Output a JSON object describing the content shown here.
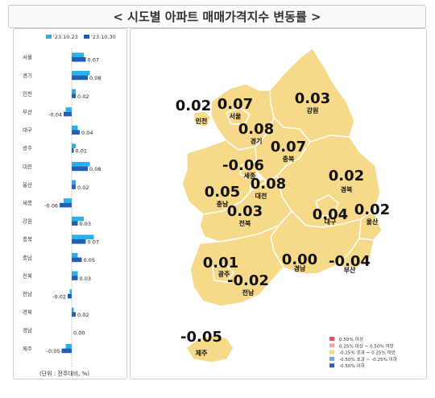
{
  "title": "< 시도별 아파트 매매가격지수 변동률 >",
  "legend": {
    "prev": "'23.10.23",
    "curr": "'23.10.30"
  },
  "colors": {
    "prev": "#2ab1ea",
    "curr": "#1f5fb6",
    "map_fill": "#f7d98a",
    "map_stroke": "#ffffff"
  },
  "chart_data": {
    "type": "bar",
    "orientation": "horizontal",
    "categories": [
      "서울",
      "경기",
      "인천",
      "부산",
      "대구",
      "광주",
      "대전",
      "울산",
      "세종",
      "강원",
      "충북",
      "충남",
      "전북",
      "전남",
      "경북",
      "경남",
      "제주"
    ],
    "series": [
      {
        "name": "'23.10.23",
        "values": [
          0.06,
          0.09,
          0.02,
          -0.03,
          0.03,
          0.02,
          0.09,
          0.02,
          -0.04,
          0.06,
          0.11,
          0.03,
          0.03,
          -0.01,
          0.01,
          0.0,
          -0.03
        ]
      },
      {
        "name": "'23.10.30",
        "values": [
          0.07,
          0.08,
          0.02,
          -0.04,
          0.04,
          0.01,
          0.08,
          0.02,
          -0.06,
          0.03,
          0.07,
          0.05,
          0.03,
          -0.02,
          0.02,
          0.0,
          -0.05
        ]
      }
    ],
    "data_labels": [
      "0.07",
      "0.08",
      "0.02",
      "-0.04",
      "0.04",
      "0.01",
      "0.08",
      "0.02",
      "-0.06",
      "0.03",
      "0.07",
      "0.05",
      "0.03",
      "-0.02",
      "0.02",
      "0.00",
      "-0.05"
    ]
  },
  "unit_note": "(단위 : 전주대비, %)",
  "map": {
    "regions": [
      {
        "name": "인천",
        "value": "0.02"
      },
      {
        "name": "서울",
        "value": "0.07"
      },
      {
        "name": "경기",
        "value": "0.08"
      },
      {
        "name": "강원",
        "value": "0.03"
      },
      {
        "name": "충북",
        "value": "0.07"
      },
      {
        "name": "세종",
        "value": "-0.06"
      },
      {
        "name": "대전",
        "value": "0.08"
      },
      {
        "name": "충남",
        "value": "0.05"
      },
      {
        "name": "경북",
        "value": "0.02"
      },
      {
        "name": "대구",
        "value": "0.04"
      },
      {
        "name": "울산",
        "value": "0.02"
      },
      {
        "name": "전북",
        "value": "0.03"
      },
      {
        "name": "광주",
        "value": "0.01"
      },
      {
        "name": "경남",
        "value": "0.00"
      },
      {
        "name": "부산",
        "value": "-0.04"
      },
      {
        "name": "전남",
        "value": "-0.02"
      },
      {
        "name": "제주",
        "value": "-0.05"
      }
    ],
    "legend": [
      {
        "label": "0.50% 이상",
        "color": "#e8545a"
      },
      {
        "label": "0.25% 이상 ~ 0.50% 미만",
        "color": "#f4a6a6"
      },
      {
        "label": "-0.25% 초과 ~ 0.25% 미만",
        "color": "#f7d98a"
      },
      {
        "label": "-0.50% 초과 ~ -0.25% 이하",
        "color": "#7aa6e0"
      },
      {
        "label": "-0.50% 이하",
        "color": "#2b5fb8"
      }
    ]
  }
}
